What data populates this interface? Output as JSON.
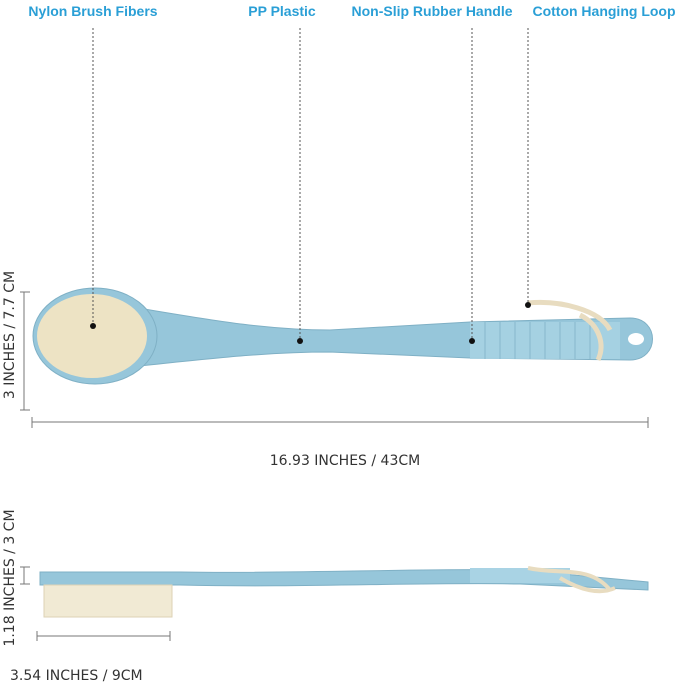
{
  "labels": [
    "Nylon Brush Fibers",
    "PP Plastic",
    "Non-Slip Rubber Handle",
    "Cotton Hanging Loop"
  ],
  "dimensions": {
    "head_width": "3 INCHES / 7.7 CM",
    "total_length": "16.93 INCHES / 43CM",
    "side_height": "1.18 INCHES / 3 CM",
    "bristle_length": "3.54 INCHES / 9CM"
  }
}
